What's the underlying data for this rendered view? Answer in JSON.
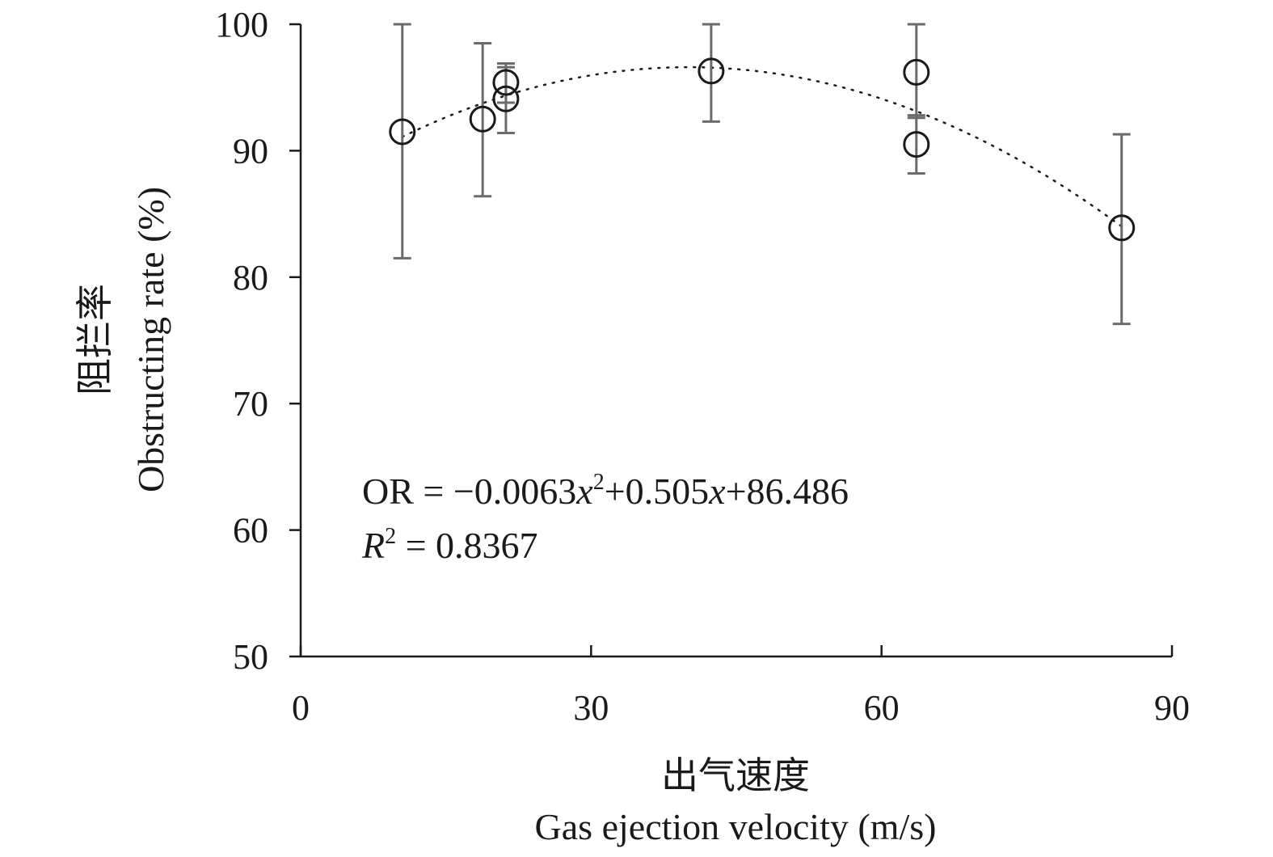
{
  "chart_data": {
    "type": "scatter",
    "xlabel": "出气速度",
    "xlabel_en": "Gas ejection velocity (m/s)",
    "ylabel": "阻拦率",
    "ylabel_en": "Obstructing rate (%)",
    "xlim": [
      0,
      90
    ],
    "ylim": [
      50,
      100
    ],
    "x_ticks": [
      0,
      30,
      60,
      90
    ],
    "y_ticks": [
      50,
      60,
      70,
      80,
      90,
      100
    ],
    "grid": false,
    "legend": "none",
    "series": [
      {
        "points": [
          {
            "x": 10.5,
            "y": 91.5,
            "err_low": 81.5,
            "err_high": 100
          },
          {
            "x": 18.8,
            "y": 92.5,
            "err_low": 86.4,
            "err_high": 98.5
          },
          {
            "x": 21.2,
            "y": 95.4,
            "err_low": 93.8,
            "err_high": 96.9
          },
          {
            "x": 21.2,
            "y": 94.1,
            "err_low": 91.4,
            "err_high": 96.6
          },
          {
            "x": 42.4,
            "y": 96.3,
            "err_low": 92.3,
            "err_high": 100
          },
          {
            "x": 63.6,
            "y": 96.2,
            "err_low": 92.6,
            "err_high": 100
          },
          {
            "x": 63.6,
            "y": 90.5,
            "err_low": 88.2,
            "err_high": 92.8
          },
          {
            "x": 84.8,
            "y": 83.9,
            "err_low": 76.3,
            "err_high": 91.3
          }
        ]
      }
    ],
    "trendline": {
      "type": "polynomial",
      "coefficients": [
        -0.0063,
        0.505,
        86.486
      ],
      "x_range": [
        10.5,
        84.8
      ]
    },
    "annotation": {
      "equation_prefix": "OR = −0.0063",
      "equation_x1": "x",
      "equation_sup": "2",
      "equation_mid": "+0.505",
      "equation_x2": "x",
      "equation_end": "+86.486",
      "r_symbol": "R",
      "r_sup": "2",
      "r_value": " = 0.8367"
    },
    "colors": {
      "axis": "#1a1a1a",
      "marker": "#1a1a1a",
      "errorbar": "#6b6b6b",
      "trendline": "#1a1a1a"
    }
  }
}
